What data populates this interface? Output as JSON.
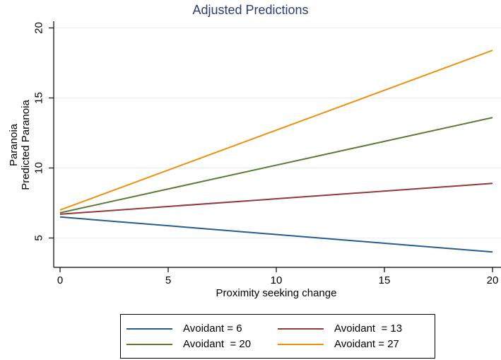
{
  "title": "Adjusted Predictions",
  "colors": {
    "title_text": "#2a3e74",
    "axis": "#000000",
    "gridline": "#e8eff2",
    "background": "#ffffff",
    "legend_border": "#000000"
  },
  "chart_data": {
    "type": "line",
    "title": "Adjusted Predictions",
    "xlabel": "Proximity seeking change",
    "ylabel_lines": [
      "Paranoia",
      "Predicted Paranoia"
    ],
    "x": [
      0,
      20
    ],
    "series": [
      {
        "name": "Avoidant = 6",
        "color": "#265d8c",
        "values": [
          6.5,
          4.0
        ]
      },
      {
        "name": "Avoidant  = 13",
        "color": "#96373c",
        "values": [
          6.7,
          8.9
        ]
      },
      {
        "name": "Avoidant  = 20",
        "color": "#5a7d35",
        "values": [
          6.8,
          13.6
        ]
      },
      {
        "name": "Avoidant = 27",
        "color": "#f0900f",
        "values": [
          7.0,
          18.4
        ]
      }
    ],
    "xticks": [
      0,
      5,
      10,
      15,
      20
    ],
    "yticks": [
      5,
      10,
      15,
      20
    ],
    "xlim": [
      0,
      20
    ],
    "ylim": [
      2.9,
      20.5
    ],
    "grid": "horizontal",
    "legend_position": "bottom",
    "legend_columns": 2
  }
}
